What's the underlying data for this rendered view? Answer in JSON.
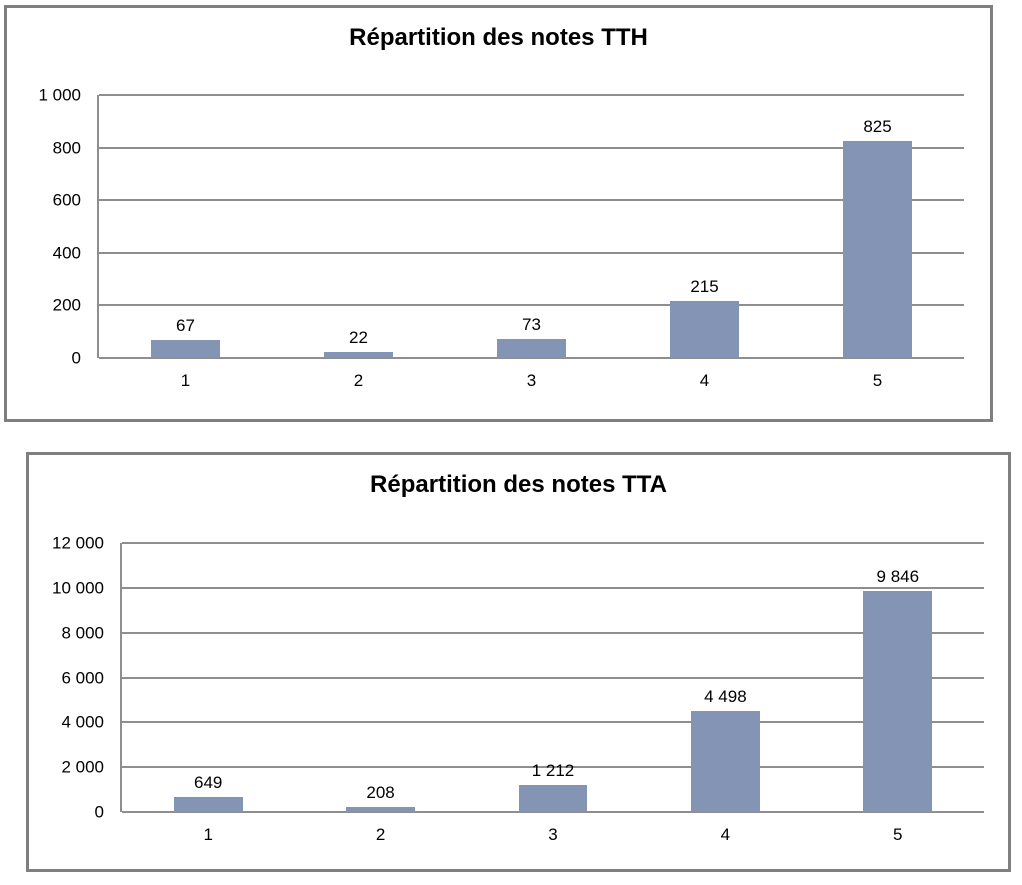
{
  "colors": {
    "bar_fill": "#8494B5",
    "gridline": "#8E8E8E",
    "frame_border": "#7F7F7F",
    "text": "#000000",
    "background": "#ffffff"
  },
  "chart_data": [
    {
      "id": "tth",
      "type": "bar",
      "title": "Répartition des notes TTH",
      "categories": [
        "1",
        "2",
        "3",
        "4",
        "5"
      ],
      "values": [
        67,
        22,
        73,
        215,
        825
      ],
      "value_labels": [
        "67",
        "22",
        "73",
        "215",
        "825"
      ],
      "xlabel": "",
      "ylabel": "",
      "ylim": [
        0,
        1000
      ],
      "grid": true,
      "legend": "none",
      "yticks": [
        {
          "value": 0,
          "label": "0"
        },
        {
          "value": 200,
          "label": "200"
        },
        {
          "value": 400,
          "label": "400"
        },
        {
          "value": 600,
          "label": "600"
        },
        {
          "value": 800,
          "label": "800"
        },
        {
          "value": 1000,
          "label": "1 000"
        }
      ]
    },
    {
      "id": "tta",
      "type": "bar",
      "title": "Répartition des notes TTA",
      "categories": [
        "1",
        "2",
        "3",
        "4",
        "5"
      ],
      "values": [
        649,
        208,
        1212,
        4498,
        9846
      ],
      "value_labels": [
        "649",
        "208",
        "1 212",
        "4 498",
        "9 846"
      ],
      "xlabel": "",
      "ylabel": "",
      "ylim": [
        0,
        12000
      ],
      "grid": true,
      "legend": "none",
      "yticks": [
        {
          "value": 0,
          "label": "0"
        },
        {
          "value": 2000,
          "label": "2 000"
        },
        {
          "value": 4000,
          "label": "4 000"
        },
        {
          "value": 6000,
          "label": "6 000"
        },
        {
          "value": 8000,
          "label": "8 000"
        },
        {
          "value": 10000,
          "label": "10 000"
        },
        {
          "value": 12000,
          "label": "12 000"
        }
      ]
    }
  ]
}
